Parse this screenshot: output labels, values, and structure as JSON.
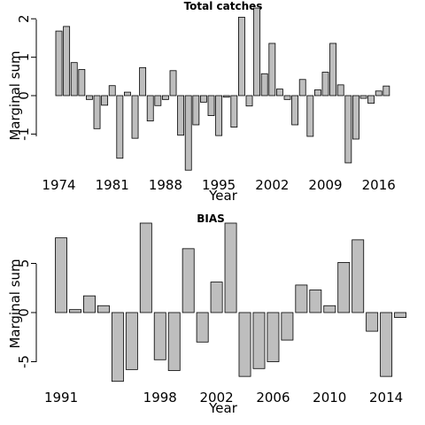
{
  "chart_data": [
    {
      "type": "bar",
      "title": "Total catches",
      "xlabel": "Year",
      "ylabel": "Marginal sum",
      "x": [
        1974,
        1975,
        1976,
        1977,
        1978,
        1979,
        1980,
        1981,
        1982,
        1983,
        1984,
        1985,
        1986,
        1987,
        1988,
        1989,
        1990,
        1991,
        1992,
        1993,
        1994,
        1995,
        1996,
        1997,
        1998,
        1999,
        2000,
        2001,
        2002,
        2003,
        2004,
        2005,
        2006,
        2007,
        2008,
        2009,
        2010,
        2011,
        2012,
        2013,
        2014,
        2015,
        2016,
        2017
      ],
      "values": [
        1.68,
        1.8,
        0.86,
        0.68,
        -0.1,
        -0.86,
        -0.25,
        0.26,
        -1.63,
        0.09,
        -1.11,
        0.73,
        -0.66,
        -0.26,
        -0.1,
        0.65,
        -1.03,
        -1.94,
        -0.76,
        -0.17,
        -0.52,
        -1.04,
        -0.04,
        -0.82,
        2.04,
        -0.27,
        2.28,
        0.57,
        1.36,
        0.17,
        -0.1,
        -0.76,
        0.42,
        -1.06,
        0.15,
        0.61,
        1.36,
        0.28,
        -1.75,
        -1.13,
        -0.07,
        -0.2,
        0.12,
        0.25
      ],
      "xticks": [
        "1974",
        "1981",
        "1988",
        "1995",
        "2002",
        "2009",
        "2016"
      ],
      "yticks": [
        "-1",
        "0",
        "1",
        "2"
      ],
      "ylim": [
        -2.05,
        2.35
      ],
      "grid": false,
      "colors": {
        "bar_fill": "#bebebe",
        "bar_stroke": "#000000"
      }
    },
    {
      "type": "bar",
      "title": "BIAS",
      "xlabel": "Year",
      "ylabel": "Marginal sum",
      "x": [
        1991,
        1992,
        1993,
        1994,
        1995,
        1996,
        1997,
        1998,
        1999,
        2000,
        2001,
        2002,
        2003,
        2004,
        2005,
        2006,
        2007,
        2008,
        2009,
        2010,
        2011,
        2012,
        2013,
        2014,
        2015,
        2016,
        2017
      ],
      "values": [
        7.6,
        0.3,
        1.7,
        0.7,
        -7.0,
        -5.8,
        9.1,
        -4.8,
        -5.9,
        6.5,
        -3.0,
        3.1,
        9.1,
        -6.5,
        -5.7,
        -5.0,
        -2.8,
        2.8,
        2.3,
        0.7,
        5.1,
        7.4,
        -1.9,
        -6.5,
        -0.5,
        0.0,
        0.0
      ],
      "xticks": [
        "1991",
        "1998",
        "2002",
        "2006",
        "2010",
        "2014"
      ],
      "yticks": [
        "-5",
        "0",
        "5"
      ],
      "ylim": [
        -7.2,
        9.5
      ],
      "grid": false,
      "colors": {
        "bar_fill": "#bebebe",
        "bar_stroke": "#000000"
      }
    }
  ]
}
